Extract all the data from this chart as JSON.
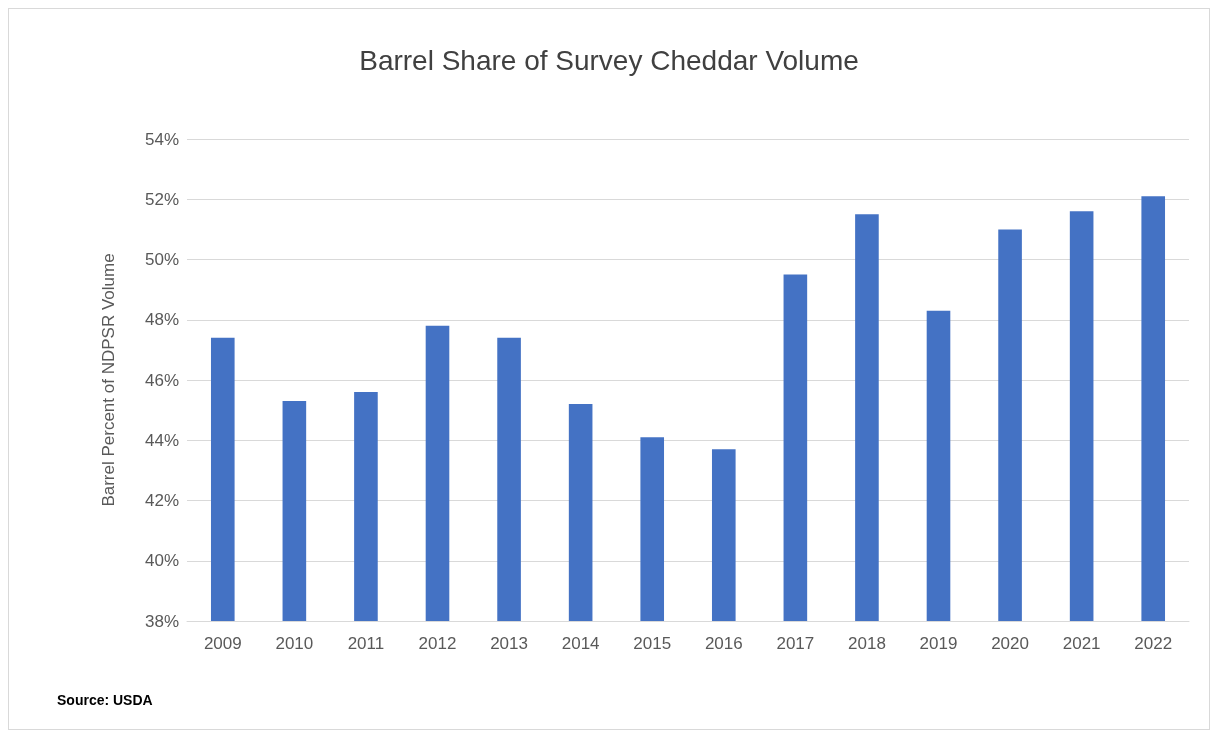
{
  "chart_data": {
    "type": "bar",
    "title": "Barrel Share of Survey Cheddar Volume",
    "ylabel": "Barrel Percent of NDPSR Volume",
    "categories": [
      "2009",
      "2010",
      "2011",
      "2012",
      "2013",
      "2014",
      "2015",
      "2016",
      "2017",
      "2018",
      "2019",
      "2020",
      "2021",
      "2022"
    ],
    "values": [
      47.4,
      45.3,
      45.6,
      47.8,
      47.4,
      45.2,
      44.1,
      43.7,
      49.5,
      51.5,
      48.3,
      51.0,
      51.6,
      52.1
    ],
    "color": "#4472c4",
    "ylim": [
      38,
      54
    ],
    "yticks": [
      {
        "value": 38,
        "label": "38%"
      },
      {
        "value": 40,
        "label": "40%"
      },
      {
        "value": 42,
        "label": "42%"
      },
      {
        "value": 44,
        "label": "44%"
      },
      {
        "value": 46,
        "label": "46%"
      },
      {
        "value": 48,
        "label": "48%"
      },
      {
        "value": 50,
        "label": "50%"
      },
      {
        "value": 52,
        "label": "52%"
      },
      {
        "value": 54,
        "label": "54%"
      }
    ],
    "grid": "y",
    "annotations": [
      "Source: USDA"
    ]
  }
}
